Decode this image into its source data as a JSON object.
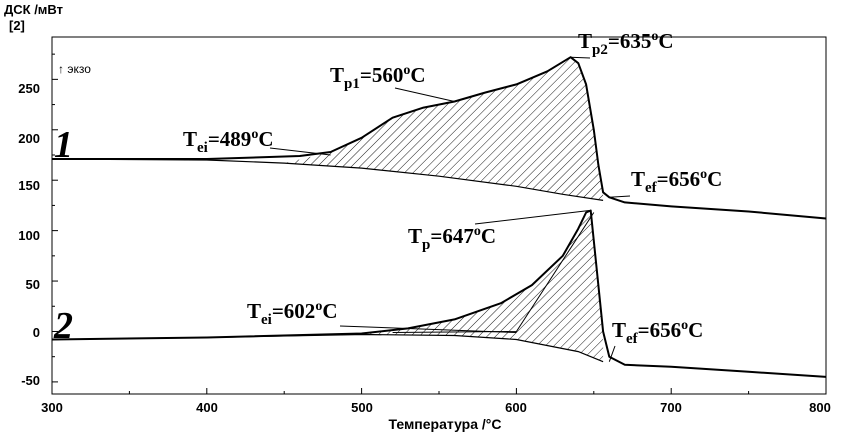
{
  "chart_data": {
    "type": "line",
    "ylabel_top": "ДСК /мВт",
    "ylabel_index": "[2]",
    "exo_label": "↑ экзо",
    "xlabel": "Температура /°C",
    "xlim": [
      300,
      800
    ],
    "ylim": [
      -62,
      292
    ],
    "x_ticks": [
      "300",
      "400",
      "500",
      "600",
      "700",
      "800"
    ],
    "y_ticks": [
      "250",
      "200",
      "150",
      "100",
      "50",
      "0",
      "-50"
    ],
    "series": [
      {
        "name": "1",
        "x": [
          300,
          400,
          460,
          480,
          500,
          520,
          540,
          560,
          580,
          600,
          620,
          635,
          640,
          645,
          650,
          653,
          656,
          660,
          670,
          700,
          750,
          800
        ],
        "y": [
          171,
          171,
          174,
          178,
          192,
          212,
          222,
          228,
          237,
          245,
          258,
          272,
          266,
          245,
          200,
          165,
          138,
          133,
          128,
          124,
          119,
          112
        ],
        "baseline_x": [
          300,
          400,
          450,
          500,
          550,
          600,
          630,
          656
        ],
        "baseline_y": [
          171,
          170,
          167,
          162,
          154,
          144,
          136,
          130
        ]
      },
      {
        "name": "2",
        "x": [
          300,
          400,
          500,
          530,
          560,
          590,
          610,
          630,
          640,
          645,
          648,
          652,
          656,
          660,
          670,
          700,
          750,
          800
        ],
        "y": [
          -8,
          -6,
          -2,
          3,
          12,
          28,
          46,
          75,
          102,
          118,
          120,
          60,
          0,
          -25,
          -33,
          -35,
          -40,
          -45
        ],
        "baseline_x": [
          300,
          400,
          500,
          560,
          600,
          640,
          656
        ],
        "baseline_y": [
          -8,
          -6,
          -3,
          -4,
          -8,
          -20,
          -30
        ]
      }
    ],
    "annotations": [
      {
        "main": "T",
        "sub": "ei",
        "rest": "=489",
        "sup": "o",
        "unit": "C"
      },
      {
        "main": "T",
        "sub": "p1",
        "rest": "=560",
        "sup": "o",
        "unit": "C"
      },
      {
        "main": "T",
        "sub": "p2",
        "rest": "=635",
        "sup": "o",
        "unit": "C"
      },
      {
        "main": "T",
        "sub": "ef",
        "rest": "=656",
        "sup": "o",
        "unit": "C"
      },
      {
        "main": "T",
        "sub": "p",
        "rest": "=647",
        "sup": "o",
        "unit": "C"
      },
      {
        "main": "T",
        "sub": "ei",
        "rest": "=602",
        "sup": "o",
        "unit": "C"
      },
      {
        "main": "T",
        "sub": "ef",
        "rest": "=656",
        "sup": "o",
        "unit": "C"
      }
    ],
    "curve_labels": [
      "1",
      "2"
    ]
  }
}
